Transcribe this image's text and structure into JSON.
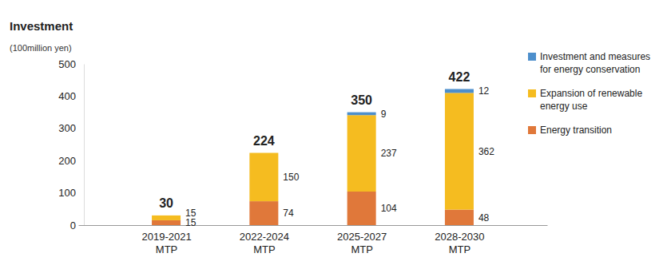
{
  "chart_data": {
    "type": "bar",
    "title": "Investment",
    "subtitle": "(100million yen)",
    "categories": [
      "2019-2021\nMTP",
      "2022-2024\nMTP",
      "2025-2027\nMTP",
      "2028-2030\nMTP"
    ],
    "series": [
      {
        "name": "Energy transition",
        "color": "#e0783a",
        "values": [
          15,
          74,
          104,
          48
        ]
      },
      {
        "name": "Expansion of renewable energy use",
        "color": "#f5bc20",
        "values": [
          15,
          150,
          237,
          362
        ]
      },
      {
        "name": "Investment and measures for energy conservation",
        "color": "#4d8fcc",
        "values": [
          null,
          null,
          9,
          12
        ]
      }
    ],
    "totals": [
      30,
      224,
      350,
      422
    ],
    "ylim": [
      0,
      500
    ],
    "yticks": [
      0,
      100,
      200,
      300,
      400,
      500
    ],
    "stacked": true,
    "data_labels": true,
    "grid": false,
    "legend": "top-right"
  }
}
